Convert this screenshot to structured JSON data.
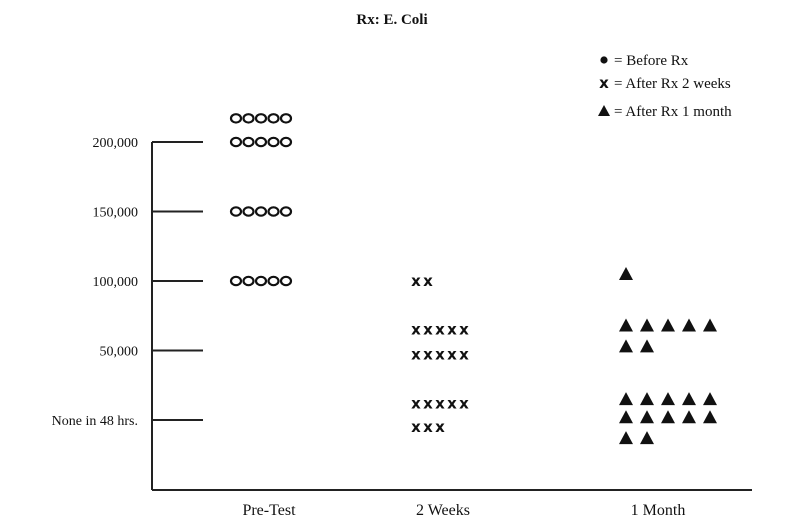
{
  "chart_data": {
    "type": "scatter",
    "title": "Rx: E. Coli",
    "categories": [
      "Pre-Test",
      "2 Weeks",
      "1 Month"
    ],
    "y_ticks": [
      {
        "value": 200000,
        "label": "200,000"
      },
      {
        "value": 150000,
        "label": "150,000"
      },
      {
        "value": 100000,
        "label": "100,000"
      },
      {
        "value": 50000,
        "label": "50,000"
      },
      {
        "value": 0,
        "label": "None in 48 hrs."
      }
    ],
    "ylim": [
      -50000,
      250000
    ],
    "grid": false,
    "legend_position": "top-right",
    "legend": [
      {
        "symbol": "o",
        "text": "= Before Rx"
      },
      {
        "symbol": "x",
        "text": "= After Rx 2 weeks"
      },
      {
        "symbol": "triangle",
        "text": "= After Rx 1 month"
      }
    ],
    "series": [
      {
        "symbol": "o",
        "category": "Pre-Test",
        "points": [
          {
            "y": 217000,
            "count": 5
          },
          {
            "y": 200000,
            "count": 5
          },
          {
            "y": 150000,
            "count": 5
          },
          {
            "y": 100000,
            "count": 5
          }
        ]
      },
      {
        "symbol": "x",
        "category": "2 Weeks",
        "points": [
          {
            "y": 100000,
            "count": 2
          },
          {
            "y": 65000,
            "count": 5
          },
          {
            "y": 47000,
            "count": 5
          },
          {
            "y": 12000,
            "count": 5
          },
          {
            "y": -5000,
            "count": 3
          }
        ]
      },
      {
        "symbol": "triangle",
        "category": "1 Month",
        "points": [
          {
            "y": 105000,
            "count": 1
          },
          {
            "y": 68000,
            "count": 5
          },
          {
            "y": 53000,
            "count": 2
          },
          {
            "y": 15000,
            "count": 5
          },
          {
            "y": 2000,
            "count": 5
          },
          {
            "y": -13000,
            "count": 2
          }
        ]
      }
    ]
  }
}
